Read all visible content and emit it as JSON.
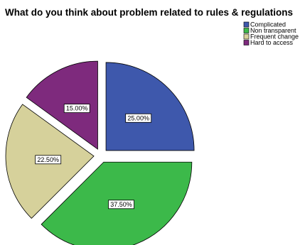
{
  "chart_data": {
    "type": "pie",
    "title": "What do you think about problem related to rules & regulations",
    "slices": [
      {
        "label": "Complicated",
        "value": 25.0,
        "display": "25.00%",
        "color": "#3e58ac",
        "exploded": true
      },
      {
        "label": "Non transparent",
        "value": 37.5,
        "display": "37.50%",
        "color": "#3cb94a",
        "exploded": true
      },
      {
        "label": "Frequent change",
        "value": 22.5,
        "display": "22.50%",
        "color": "#d6d19b",
        "exploded": true
      },
      {
        "label": "Hard to access",
        "value": 15.0,
        "display": "15.00%",
        "color": "#7e2a7d",
        "exploded": true
      }
    ],
    "legend_position": "top-right",
    "start_angle": "12 o'clock",
    "direction": "clockwise"
  }
}
